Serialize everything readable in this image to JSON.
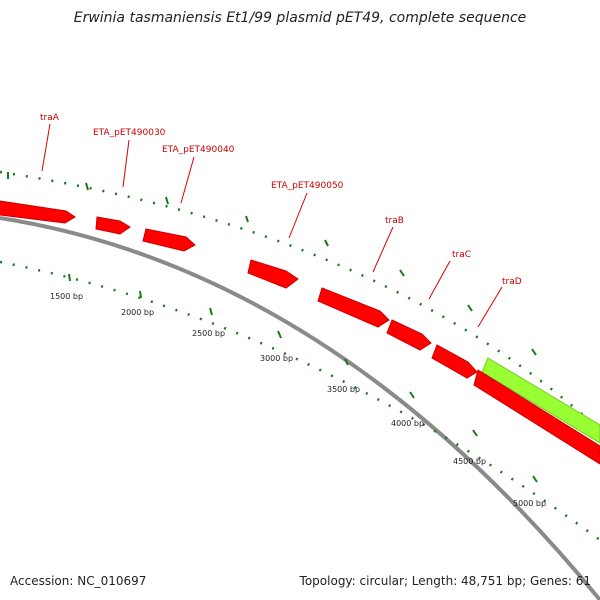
{
  "title": "Erwinia tasmaniensis Et1/99 plasmid pET49, complete sequence",
  "footer": {
    "accession": "Accession: NC_010697",
    "summary": "Topology: circular; Length: 48,751 bp; Genes: 61"
  },
  "colors": {
    "backbone": "#8a8a8a",
    "gene_forward": "#ff0000",
    "gene_other": "#99ff33",
    "label_text": "#cc0000",
    "ticks": "#1a7a1a"
  },
  "genes": [
    {
      "name": "traA"
    },
    {
      "name": "ETA_pET490030"
    },
    {
      "name": "ETA_pET490040"
    },
    {
      "name": "ETA_pET490050"
    },
    {
      "name": "traB"
    },
    {
      "name": "traC"
    },
    {
      "name": "traD"
    }
  ],
  "bp_ticks": [
    {
      "label": "1500 bp"
    },
    {
      "label": "2000 bp"
    },
    {
      "label": "2500 bp"
    },
    {
      "label": "3000 bp"
    },
    {
      "label": "3500 bp"
    },
    {
      "label": "4000 bp"
    },
    {
      "label": "4500 bp"
    },
    {
      "label": "5000 bp"
    }
  ]
}
